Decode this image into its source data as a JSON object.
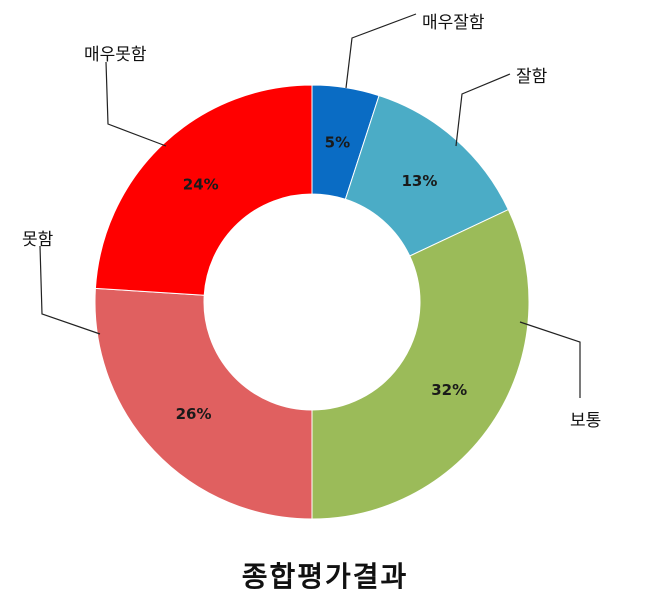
{
  "chart_data": {
    "type": "pie",
    "donut": true,
    "title": "종합평가결과",
    "categories": [
      "매우잘함",
      "잘함",
      "보통",
      "못함",
      "매우못함"
    ],
    "values": [
      5,
      13,
      32,
      26,
      24
    ],
    "value_labels": [
      "5%",
      "13%",
      "32%",
      "26%",
      "24%"
    ],
    "colors": [
      "#0a6cc4",
      "#4bacc6",
      "#9bbb59",
      "#e06060",
      "#ff0000"
    ],
    "legend": "none"
  }
}
